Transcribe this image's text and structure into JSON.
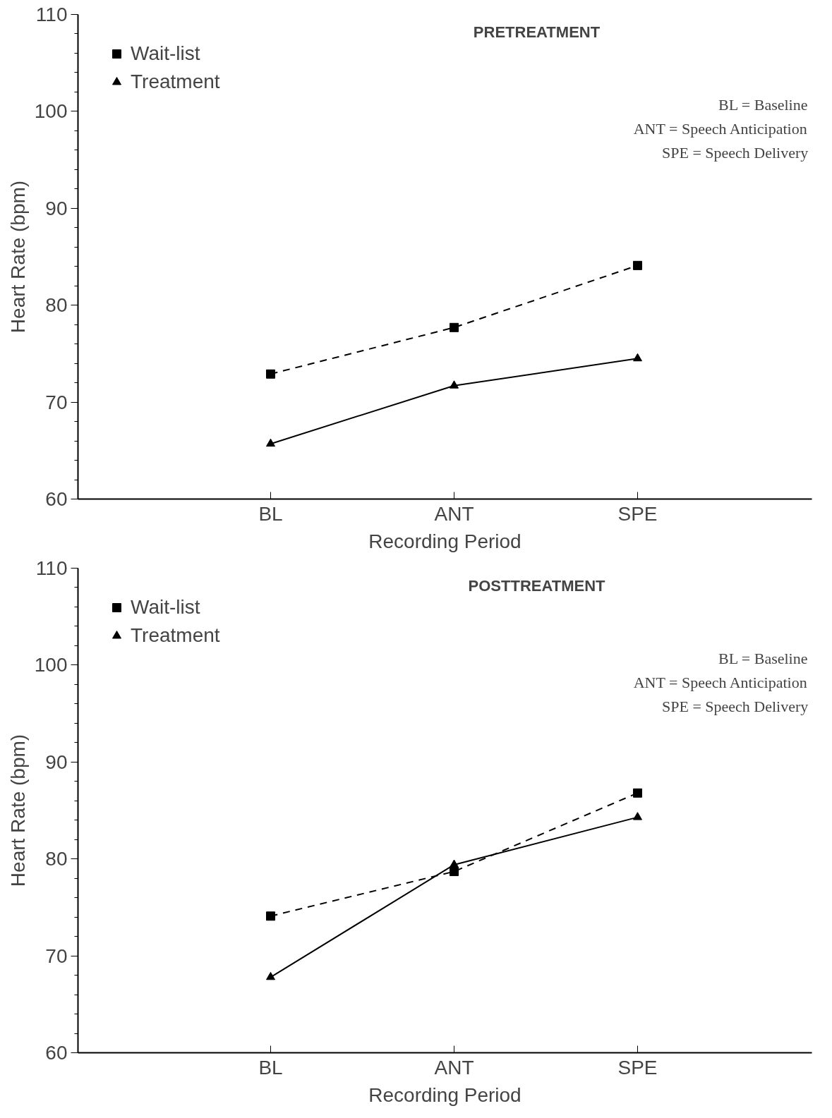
{
  "chart_data": [
    {
      "type": "line",
      "title": "PRETREATMENT",
      "xlabel": "Recording Period",
      "ylabel": "Heart Rate (bpm)",
      "categories": [
        "BL",
        "ANT",
        "SPE"
      ],
      "ylim": [
        60,
        110
      ],
      "yticks": [
        60,
        70,
        80,
        90,
        100,
        110
      ],
      "grid": false,
      "legend": "top left",
      "series": [
        {
          "name": "Wait-list",
          "color": "#000000",
          "values": [
            72.9,
            77.7,
            84.1
          ],
          "marker": "square",
          "line_style": "dashed"
        },
        {
          "name": "Treatment",
          "color": "#000000",
          "values": [
            65.7,
            71.7,
            74.5
          ],
          "marker": "triangle",
          "line_style": "solid"
        }
      ],
      "annotations": [
        "BL = Baseline",
        "ANT = Speech Anticipation",
        "SPE = Speech Delivery"
      ]
    },
    {
      "type": "line",
      "title": "POSTTREATMENT",
      "xlabel": "Recording Period",
      "ylabel": "Heart Rate (bpm)",
      "categories": [
        "BL",
        "ANT",
        "SPE"
      ],
      "ylim": [
        60,
        110
      ],
      "yticks": [
        60,
        70,
        80,
        90,
        100,
        110
      ],
      "grid": false,
      "legend": "top left",
      "series": [
        {
          "name": "Wait-list",
          "color": "#000000",
          "values": [
            74.1,
            78.7,
            86.8
          ],
          "marker": "square",
          "line_style": "dashed"
        },
        {
          "name": "Treatment",
          "color": "#000000",
          "values": [
            67.8,
            79.4,
            84.3
          ],
          "marker": "triangle",
          "line_style": "solid"
        }
      ],
      "annotations": [
        "BL = Baseline",
        "ANT = Speech Anticipation",
        "SPE = Speech Delivery"
      ]
    }
  ]
}
